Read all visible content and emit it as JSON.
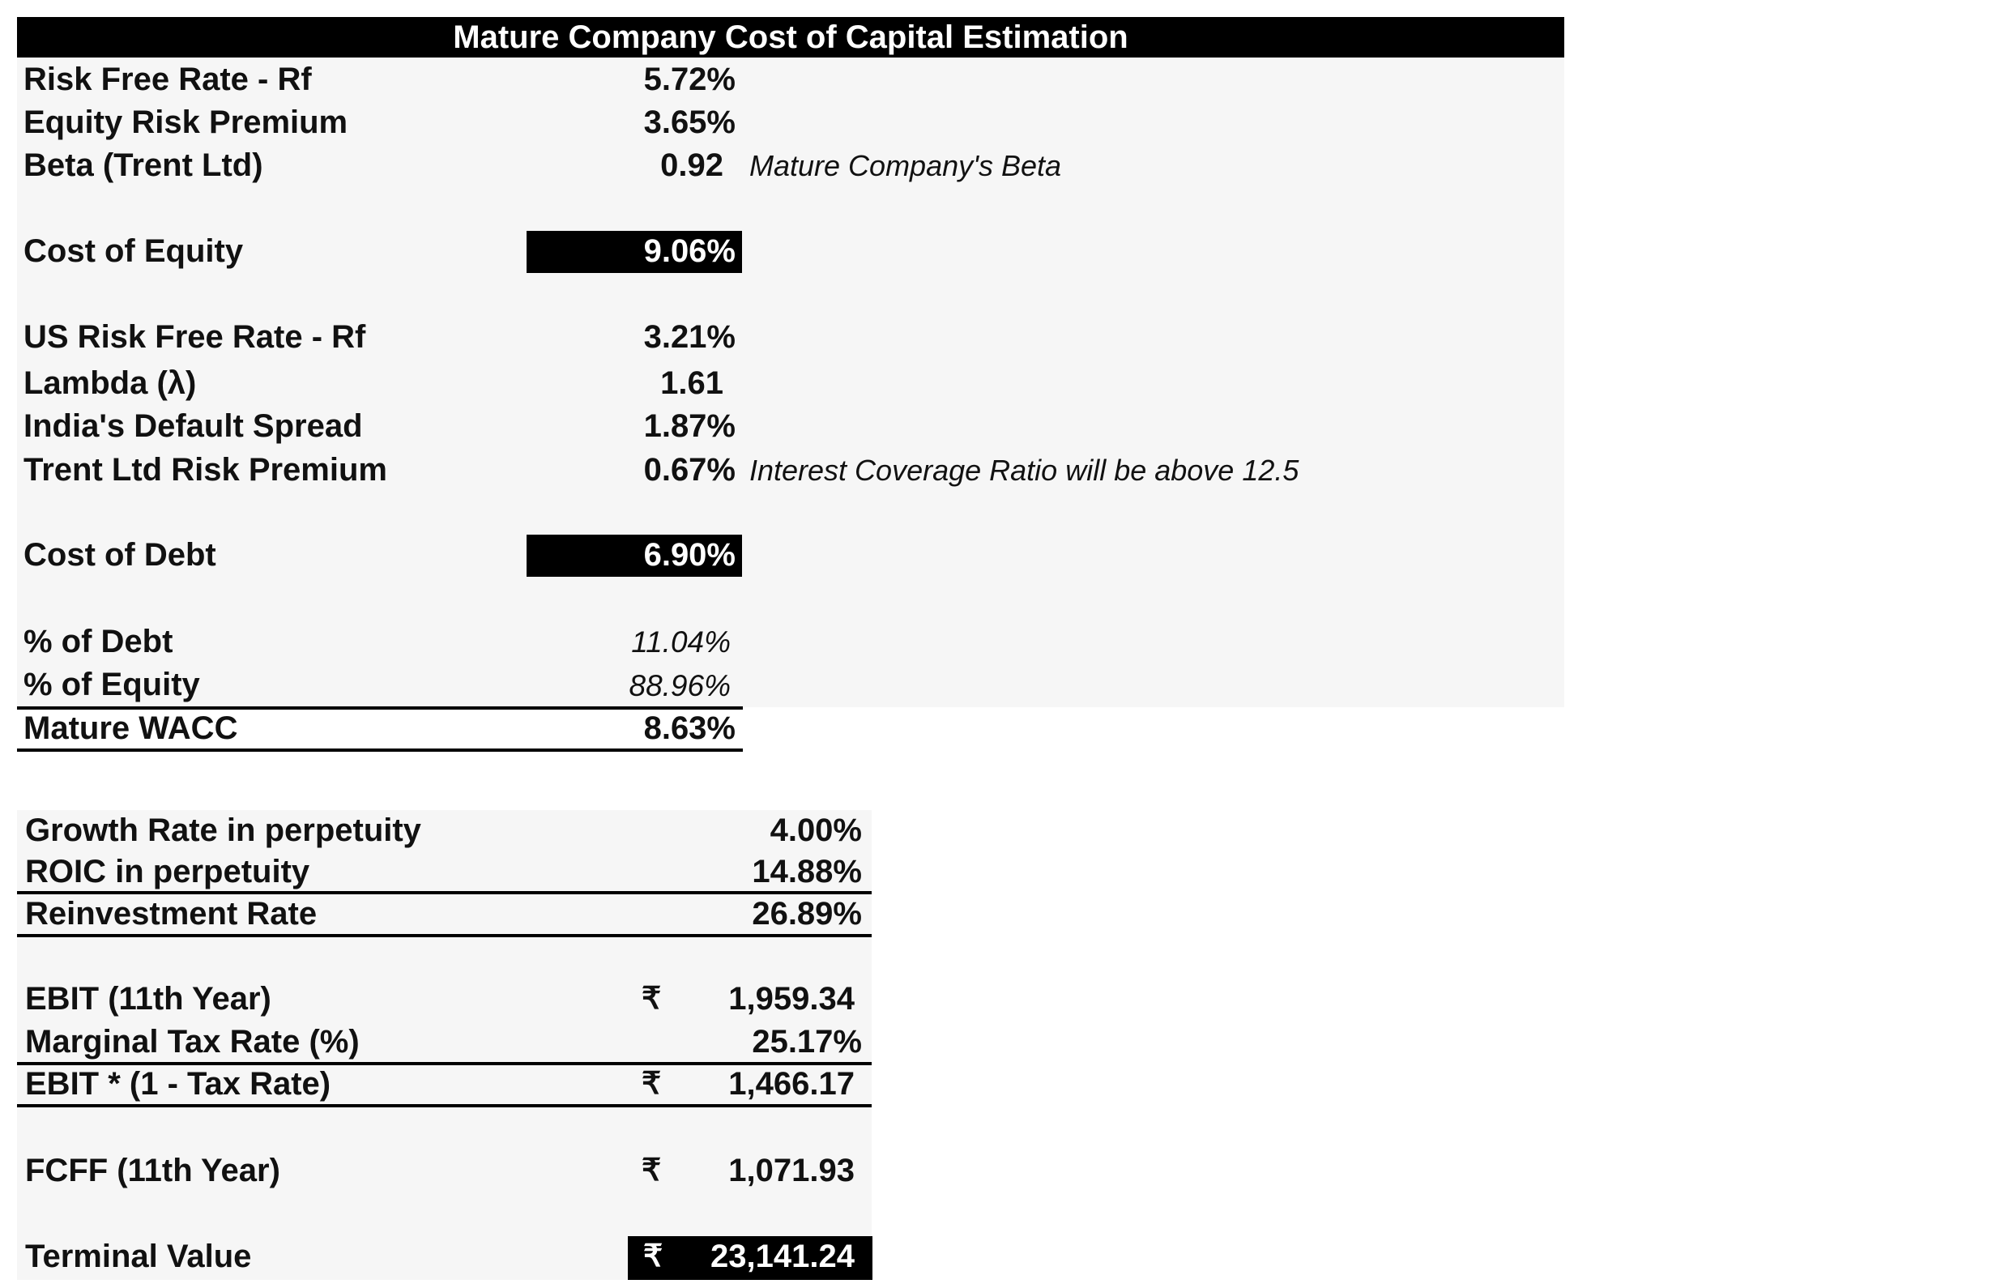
{
  "title": "Mature Company Cost of Capital Estimation",
  "coe_rows": [
    {
      "label": "Risk Free Rate - Rf",
      "value": "5.72%"
    },
    {
      "label": "Equity Risk Premium",
      "value": "3.65%"
    },
    {
      "label": "Beta (Trent Ltd)",
      "value": "0.92",
      "note": "Mature Company's Beta"
    }
  ],
  "cost_of_equity": {
    "label": "Cost of Equity",
    "value": "9.06%"
  },
  "cod_rows": [
    {
      "label": "US Risk Free Rate - Rf",
      "value": "3.21%"
    },
    {
      "label": "Lambda (λ)",
      "value": "1.61"
    },
    {
      "label": "India's Default Spread",
      "value": "1.87%"
    },
    {
      "label": "Trent Ltd Risk Premium",
      "value": "0.67%",
      "note": "Interest Coverage Ratio will be above 12.5"
    }
  ],
  "cost_of_debt": {
    "label": "Cost of Debt",
    "value": "6.90%"
  },
  "weights": [
    {
      "label": "% of Debt",
      "value": "11.04%"
    },
    {
      "label": "% of Equity",
      "value": "88.96%"
    }
  ],
  "wacc": {
    "label": "Mature WACC",
    "value": "8.63%"
  },
  "terminal": {
    "growth": {
      "label": "Growth Rate in perpetuity",
      "value": "4.00%"
    },
    "roic": {
      "label": "ROIC in perpetuity",
      "value": "14.88%"
    },
    "reinvestment": {
      "label": "Reinvestment Rate",
      "value": "26.89%"
    },
    "ebit": {
      "label": "EBIT (11th Year)",
      "currency": "₹",
      "value": "1,959.34"
    },
    "tax": {
      "label": "Marginal Tax Rate (%)",
      "value": "25.17%"
    },
    "nopat": {
      "label": "EBIT * (1 - Tax Rate)",
      "currency": "₹",
      "value": "1,466.17"
    },
    "fcff": {
      "label": "FCFF (11th Year)",
      "currency": "₹",
      "value": "1,071.93"
    },
    "tv": {
      "label": "Terminal Value",
      "currency": "₹",
      "value": "23,141.24"
    }
  },
  "colors": {
    "panel_background": "#f6f6f6",
    "header_background": "#000000",
    "header_text": "#ffffff"
  }
}
